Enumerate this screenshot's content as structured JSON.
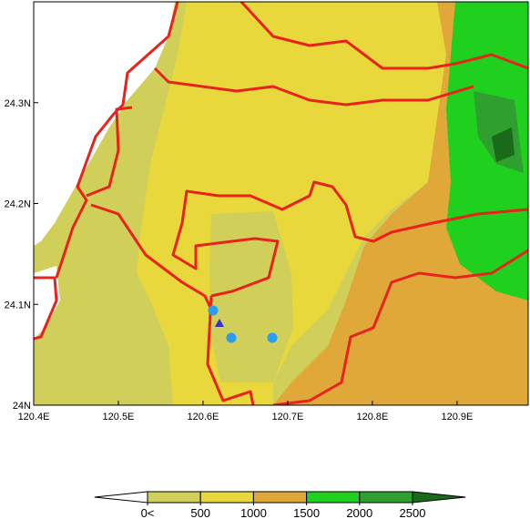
{
  "map": {
    "xlim": [
      120.4,
      120.984
    ],
    "ylim": [
      24.0,
      24.4
    ],
    "xticks": [
      {
        "value": 120.4,
        "label": "120.4E"
      },
      {
        "value": 120.5,
        "label": "120.5E"
      },
      {
        "value": 120.6,
        "label": "120.6E"
      },
      {
        "value": 120.7,
        "label": "120.7E"
      },
      {
        "value": 120.8,
        "label": "120.8E"
      },
      {
        "value": 120.9,
        "label": "120.9E"
      }
    ],
    "yticks": [
      {
        "value": 24.0,
        "label": "24N"
      },
      {
        "value": 24.1,
        "label": "24.1N"
      },
      {
        "value": 24.2,
        "label": "24.2N"
      },
      {
        "value": 24.3,
        "label": "24.3N"
      }
    ]
  },
  "colorbar": {
    "levels": [
      {
        "value": 0,
        "label": "0<"
      },
      500,
      1000,
      1500,
      2000,
      2500
    ],
    "colors": [
      "#ffffff",
      "#cfcf5a",
      "#e8d83c",
      "#e0a838",
      "#1fd01f",
      "#2f9f2f",
      "#1a6a1a"
    ]
  }
}
